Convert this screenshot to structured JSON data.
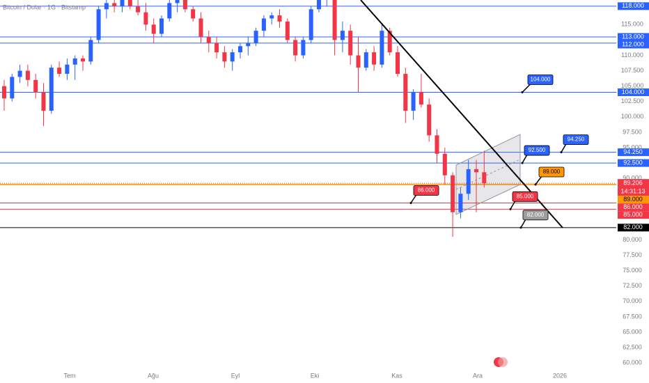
{
  "chart_data": {
    "type": "candlestick",
    "title": "Bitcoin / Dolar · 1G · Bitstamp",
    "up_color": "#2962ff",
    "down_color": "#f23645",
    "ylim": [
      59000,
      119000
    ],
    "yticks": [
      {
        "value": 115000,
        "label": "115.000"
      },
      {
        "value": 110000,
        "label": "110.000"
      },
      {
        "value": 107500,
        "label": "107.500"
      },
      {
        "value": 105000,
        "label": "105.000"
      },
      {
        "value": 102500,
        "label": "102.500"
      },
      {
        "value": 100000,
        "label": "100.000"
      },
      {
        "value": 97500,
        "label": "97.500"
      },
      {
        "value": 95000,
        "label": "95.000"
      },
      {
        "value": 90000,
        "label": "90.000"
      },
      {
        "value": 80000,
        "label": "80.000"
      },
      {
        "value": 77500,
        "label": "77.500"
      },
      {
        "value": 75000,
        "label": "75.000"
      },
      {
        "value": 72500,
        "label": "72.500"
      },
      {
        "value": 70000,
        "label": "70.000"
      },
      {
        "value": 67500,
        "label": "67.500"
      },
      {
        "value": 65000,
        "label": "65.000"
      },
      {
        "value": 62500,
        "label": "62.500"
      },
      {
        "value": 60000,
        "label": "60.000"
      }
    ],
    "x_labels": [
      "Tem",
      "Ağu",
      "Eyl",
      "Eki",
      "Kas",
      "Ara",
      "2026"
    ],
    "levels": [
      {
        "value": 118000,
        "label": "118.000",
        "color": "#2962ff"
      },
      {
        "value": 113000,
        "label": "113.000",
        "color": "#2962ff"
      },
      {
        "value": 112000,
        "label": "112.000",
        "color": "#2962ff"
      },
      {
        "value": 104000,
        "label": "104.000",
        "color": "#2962ff"
      },
      {
        "value": 94250,
        "label": "94.250",
        "color": "#2962ff"
      },
      {
        "value": 92500,
        "label": "92.500",
        "color": "#2962ff"
      },
      {
        "value": 89000,
        "label": "89.000",
        "color": "#ff9800"
      },
      {
        "value": 86000,
        "label": "86.000",
        "color": "#f23645"
      },
      {
        "value": 85000,
        "label": "85.000",
        "color": "#f23645"
      },
      {
        "value": 82000,
        "label": "82.000",
        "color": "#000000"
      }
    ],
    "current": {
      "value": 89206,
      "label": "89.206",
      "countdown": "14:31:13",
      "color": "#f23645"
    },
    "annotations": [
      {
        "value": 104000,
        "label": "104.000",
        "color": "#2962ff"
      },
      {
        "value": 92500,
        "label": "92.500",
        "color": "#2962ff"
      },
      {
        "value": 94250,
        "label": "94.250",
        "color": "#2962ff"
      },
      {
        "value": 89000,
        "label": "89.000",
        "color": "#ff9800"
      },
      {
        "value": 86000,
        "label": "86.000",
        "color": "#f23645"
      },
      {
        "value": 85000,
        "label": "85.000",
        "color": "#f23645"
      },
      {
        "value": 82000,
        "label": "82.000",
        "color": "#9e9e9e"
      }
    ],
    "ohlc": [
      [
        105000,
        106000,
        101000,
        103000
      ],
      [
        103000,
        107000,
        102500,
        106500
      ],
      [
        106500,
        108500,
        105500,
        107500
      ],
      [
        107500,
        108500,
        105000,
        106000
      ],
      [
        106000,
        107000,
        103000,
        104000
      ],
      [
        104000,
        105500,
        98500,
        101000
      ],
      [
        101000,
        108500,
        100500,
        108000
      ],
      [
        108000,
        109000,
        106500,
        107000
      ],
      [
        107000,
        109500,
        106000,
        108500
      ],
      [
        108500,
        110000,
        106000,
        109500
      ],
      [
        109500,
        110000,
        107500,
        109000
      ],
      [
        109000,
        113000,
        108500,
        112500
      ],
      [
        112500,
        118000,
        112000,
        117500
      ],
      [
        117500,
        119500,
        116000,
        118500
      ],
      [
        118500,
        119500,
        117000,
        118000
      ],
      [
        118000,
        119500,
        117000,
        119000
      ],
      [
        119000,
        119500,
        117500,
        118000
      ],
      [
        118000,
        119500,
        116500,
        117000
      ],
      [
        117000,
        118500,
        114000,
        115000
      ],
      [
        115000,
        116000,
        112000,
        113500
      ],
      [
        113500,
        116500,
        113000,
        116000
      ],
      [
        116000,
        119000,
        115500,
        118500
      ],
      [
        118500,
        119500,
        117000,
        119000
      ],
      [
        119000,
        119500,
        117000,
        117500
      ],
      [
        117500,
        118000,
        115500,
        116000
      ],
      [
        116000,
        117000,
        112000,
        113000
      ],
      [
        113000,
        114000,
        110500,
        112000
      ],
      [
        112000,
        113000,
        109500,
        110500
      ],
      [
        110500,
        111500,
        108000,
        109000
      ],
      [
        109000,
        111000,
        107500,
        110500
      ],
      [
        110500,
        112000,
        109500,
        111500
      ],
      [
        111500,
        113000,
        110000,
        112000
      ],
      [
        112000,
        114500,
        111500,
        114000
      ],
      [
        114000,
        116500,
        113000,
        116000
      ],
      [
        116000,
        117000,
        115000,
        116500
      ],
      [
        116500,
        117500,
        114500,
        115500
      ],
      [
        115500,
        116000,
        112000,
        112500
      ],
      [
        112500,
        113000,
        109000,
        110000
      ],
      [
        110000,
        113000,
        109500,
        112500
      ],
      [
        112500,
        118000,
        112000,
        117500
      ],
      [
        117500,
        119500,
        117000,
        119500
      ],
      [
        119500,
        121000,
        118000,
        120500
      ],
      [
        120500,
        121000,
        110000,
        112500
      ],
      [
        112500,
        115500,
        110500,
        114000
      ],
      [
        114000,
        115000,
        108500,
        110000
      ],
      [
        110000,
        113000,
        104000,
        108000
      ],
      [
        108000,
        111000,
        107500,
        110500
      ],
      [
        110500,
        111500,
        107500,
        108500
      ],
      [
        108500,
        115000,
        108000,
        114000
      ],
      [
        114000,
        114500,
        110000,
        110500
      ],
      [
        110500,
        111500,
        106500,
        107000
      ],
      [
        107000,
        108000,
        99000,
        101000
      ],
      [
        101000,
        104500,
        99500,
        104000
      ],
      [
        104000,
        107000,
        101500,
        102000
      ],
      [
        102000,
        103000,
        96000,
        97000
      ],
      [
        97000,
        98000,
        92500,
        94000
      ],
      [
        94000,
        95000,
        89000,
        90500
      ],
      [
        90500,
        91000,
        80500,
        84500
      ],
      [
        84500,
        88500,
        83500,
        87500
      ],
      [
        87500,
        93000,
        86500,
        91500
      ],
      [
        91500,
        93000,
        84500,
        91000
      ],
      [
        91000,
        94500,
        88500,
        89206
      ]
    ]
  }
}
